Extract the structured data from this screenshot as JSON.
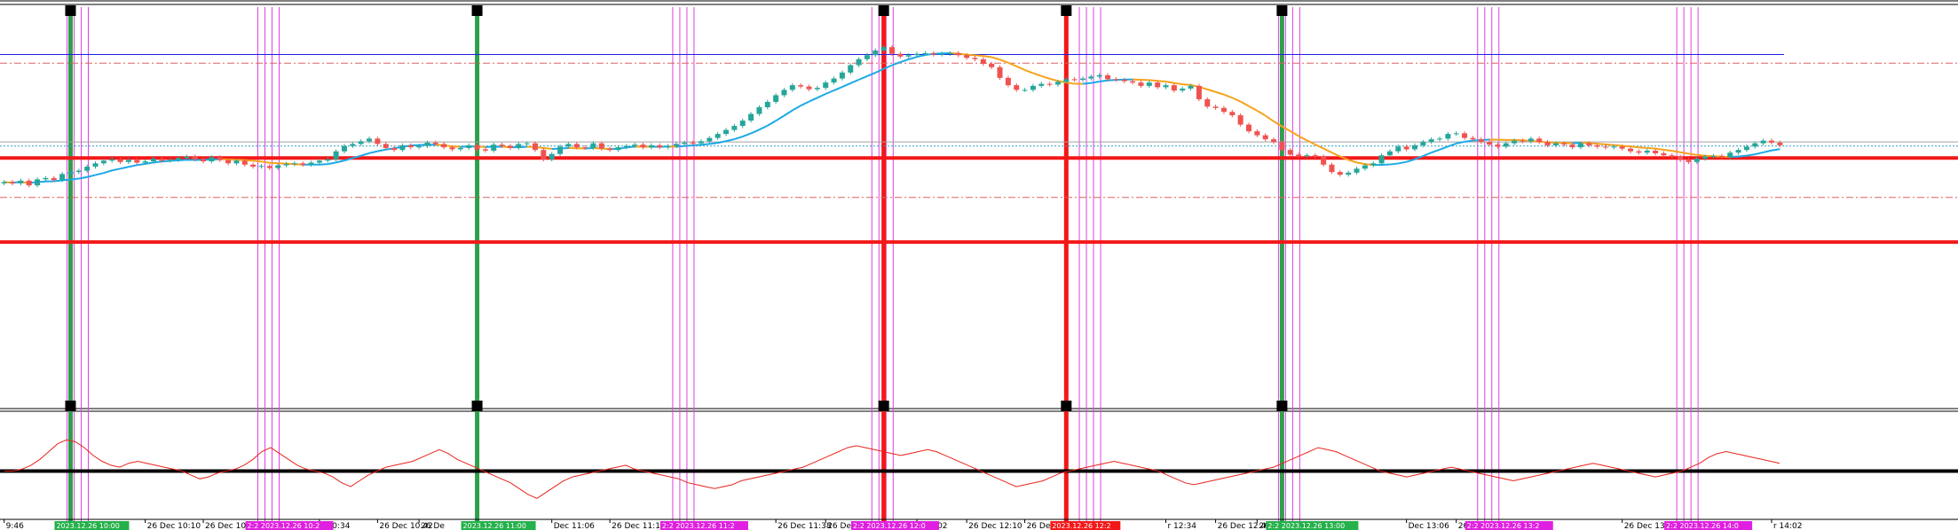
{
  "chart_data": [
    {
      "type": "candlestick",
      "title": "",
      "xlabel": "",
      "ylabel": "",
      "grid": false,
      "legend": "none",
      "price_range_px_note_removed": true,
      "ylim": [
        0,
        600
      ],
      "moving_average": {
        "name": "",
        "up_color": "#1ba9e6",
        "down_color": "#f5a31a"
      },
      "horizontal_levels": [
        {
          "kind": "solid",
          "color": "#1f1fe6",
          "value": 529
        },
        {
          "kind": "dashdot",
          "color": "#e06060",
          "value": 516
        },
        {
          "kind": "solid",
          "color": "#a0a0a0",
          "value": 398
        },
        {
          "kind": "dotted",
          "color": "#2aa0c8",
          "value": 392
        },
        {
          "kind": "thick",
          "color": "#f21818",
          "value": 374
        },
        {
          "kind": "dashdot",
          "color": "#e06060",
          "value": 315
        },
        {
          "kind": "thick",
          "color": "#f21818",
          "value": 248
        }
      ],
      "bull_color": "#26a69a",
      "bear_color": "#ef5350",
      "candles_close": [
        338,
        336,
        340,
        333,
        342,
        344,
        341,
        350,
        353,
        355,
        361,
        366,
        370,
        372,
        368,
        371,
        367,
        369,
        373,
        370,
        371,
        374,
        376,
        372,
        369,
        375,
        371,
        366,
        370,
        364,
        361,
        362,
        359,
        363,
        365,
        366,
        364,
        367,
        370,
        372,
        384,
        392,
        395,
        399,
        403,
        395,
        389,
        386,
        393,
        390,
        392,
        397,
        395,
        390,
        387,
        389,
        393,
        387,
        385,
        394,
        392,
        389,
        395,
        396,
        386,
        372,
        380,
        391,
        395,
        390,
        389,
        396,
        388,
        386,
        390,
        392,
        394,
        390,
        393,
        390,
        392,
        395,
        397,
        396,
        399,
        404,
        410,
        416,
        422,
        430,
        440,
        450,
        458,
        468,
        476,
        483,
        481,
        477,
        479,
        487,
        493,
        502,
        513,
        522,
        528,
        535,
        540,
        530,
        526,
        528,
        530,
        531,
        529,
        530,
        531,
        528,
        524,
        522,
        515,
        510,
        494,
        483,
        476,
        476,
        482,
        485,
        484,
        488,
        492,
        491,
        493,
        496,
        498,
        492,
        491,
        489,
        487,
        482,
        487,
        480,
        483,
        475,
        478,
        482,
        462,
        451,
        449,
        443,
        438,
        424,
        414,
        408,
        402,
        398,
        386,
        379,
        377,
        378,
        376,
        364,
        353,
        349,
        352,
        358,
        363,
        366,
        378,
        384,
        391,
        387,
        393,
        398,
        402,
        403,
        410,
        411,
        404,
        402,
        398,
        394,
        391,
        396,
        400,
        399,
        403,
        398,
        393,
        396,
        394,
        390,
        396,
        393,
        391,
        390,
        391,
        388,
        384,
        382,
        385,
        381,
        378,
        376,
        371,
        368,
        373,
        376,
        377,
        375,
        382,
        386,
        391,
        396,
        400,
        397,
        393
      ],
      "hline_values_desc": "",
      "vertical_markers": [
        {
          "kind": "green",
          "index": 8
        },
        {
          "kind": "green",
          "index": 57
        },
        {
          "kind": "red",
          "index": 106
        },
        {
          "kind": "red",
          "index": 128
        },
        {
          "kind": "green",
          "index": 154
        }
      ],
      "magenta_clusters": [
        8,
        31,
        81,
        105,
        130,
        154,
        178,
        202
      ]
    },
    {
      "type": "line",
      "title": "",
      "xlabel": "",
      "ylabel": "",
      "grid": false,
      "legend": "none",
      "series_color": "#e8241c",
      "zero_line_color": "#000000",
      "values": [
        0,
        0,
        1,
        3,
        6,
        10,
        14,
        16,
        15,
        12,
        8,
        5,
        3,
        2,
        4,
        5,
        4,
        3,
        2,
        1,
        0,
        -2,
        -4,
        -3,
        -1,
        0,
        1,
        3,
        6,
        10,
        12,
        9,
        6,
        3,
        1,
        0,
        -1,
        -3,
        -6,
        -8,
        -5,
        -2,
        0,
        2,
        3,
        4,
        5,
        7,
        9,
        11,
        9,
        6,
        4,
        2,
        0,
        -2,
        -4,
        -6,
        -9,
        -12,
        -14,
        -11,
        -8,
        -5,
        -3,
        -2,
        -1,
        0,
        1,
        2,
        3,
        1,
        0,
        -1,
        -2,
        -3,
        -4,
        -6,
        -7,
        -8,
        -9,
        -8,
        -7,
        -5,
        -4,
        -3,
        -2,
        -1,
        0,
        1,
        2,
        4,
        6,
        8,
        10,
        12,
        13,
        12,
        11,
        10,
        9,
        8,
        9,
        10,
        11,
        10,
        8,
        6,
        4,
        2,
        0,
        -2,
        -4,
        -6,
        -8,
        -7,
        -6,
        -5,
        -3,
        -1,
        0,
        1,
        2,
        3,
        4,
        5,
        4,
        3,
        2,
        1,
        0,
        -2,
        -4,
        -6,
        -7,
        -6,
        -5,
        -4,
        -3,
        -2,
        -1,
        0,
        1,
        2,
        4,
        6,
        8,
        10,
        12,
        11,
        10,
        8,
        6,
        4,
        2,
        0,
        -1,
        -2,
        -3,
        -2,
        -1,
        0,
        1,
        2,
        1,
        0,
        -1,
        -2,
        -3,
        -4,
        -5,
        -4,
        -3,
        -2,
        -1,
        0,
        1,
        2,
        3,
        4,
        3,
        2,
        1,
        0,
        -1,
        -2,
        -3,
        -2,
        -1,
        0,
        2,
        4,
        7,
        9,
        10,
        9,
        8,
        7,
        6,
        5,
        4
      ]
    }
  ],
  "x_axis": {
    "ticks": [
      {
        "label": "9:46",
        "index": 0
      },
      {
        "label": "26 Dec 10:10",
        "index": 17
      },
      {
        "label": "26 Dec 10",
        "index": 24
      },
      {
        "label": "r 10:34",
        "index": 38
      },
      {
        "label": "26 Dec 10:42",
        "index": 45
      },
      {
        "label": "26 De",
        "index": 50
      },
      {
        "label": "Dec 11:06",
        "index": 66
      },
      {
        "label": "26 Dec 11:14",
        "index": 73
      },
      {
        "label": "26 Dec 11:38",
        "index": 93
      },
      {
        "label": "26 Dec 11:46",
        "index": 99
      },
      {
        "label": "r 12:02",
        "index": 110
      },
      {
        "label": "26 Dec 12:10",
        "index": 116
      },
      {
        "label": "26 Dec 12",
        "index": 123
      },
      {
        "label": "r 12:34",
        "index": 140
      },
      {
        "label": "26 Dec 12:42",
        "index": 146
      },
      {
        "label": "26 De",
        "index": 151
      },
      {
        "label": "Dec 13:06",
        "index": 169
      },
      {
        "label": "26 Dec 13:14",
        "index": 175
      },
      {
        "label": "26 Dec 13:38",
        "index": 195
      },
      {
        "label": "r 14:02",
        "index": 213
      }
    ],
    "tags": [
      {
        "label": "2023.12.26 10:00",
        "color": "#24b04a",
        "index": 8
      },
      {
        "label": "2:2 2023.12.26 10:2",
        "color": "#e020e0",
        "index": 31
      },
      {
        "label": "2023.12.26 11:00",
        "color": "#24b04a",
        "index": 57
      },
      {
        "label": "2:2 2023.12.26 11:2",
        "color": "#e020e0",
        "index": 81
      },
      {
        "label": "2:2 2023.12.26 12:0",
        "color": "#e020e0",
        "index": 104
      },
      {
        "label": "2023.12.26 12:2",
        "color": "#f21818",
        "index": 128
      },
      {
        "label": "2:2 2023.12.26 13:00",
        "color": "#24b04a",
        "index": 154
      },
      {
        "label": "2:2 2023.12.26 13:2",
        "color": "#e020e0",
        "index": 178
      },
      {
        "label": "2:2 2023.12.26 14:0",
        "color": "#e020e0",
        "index": 202
      }
    ]
  }
}
